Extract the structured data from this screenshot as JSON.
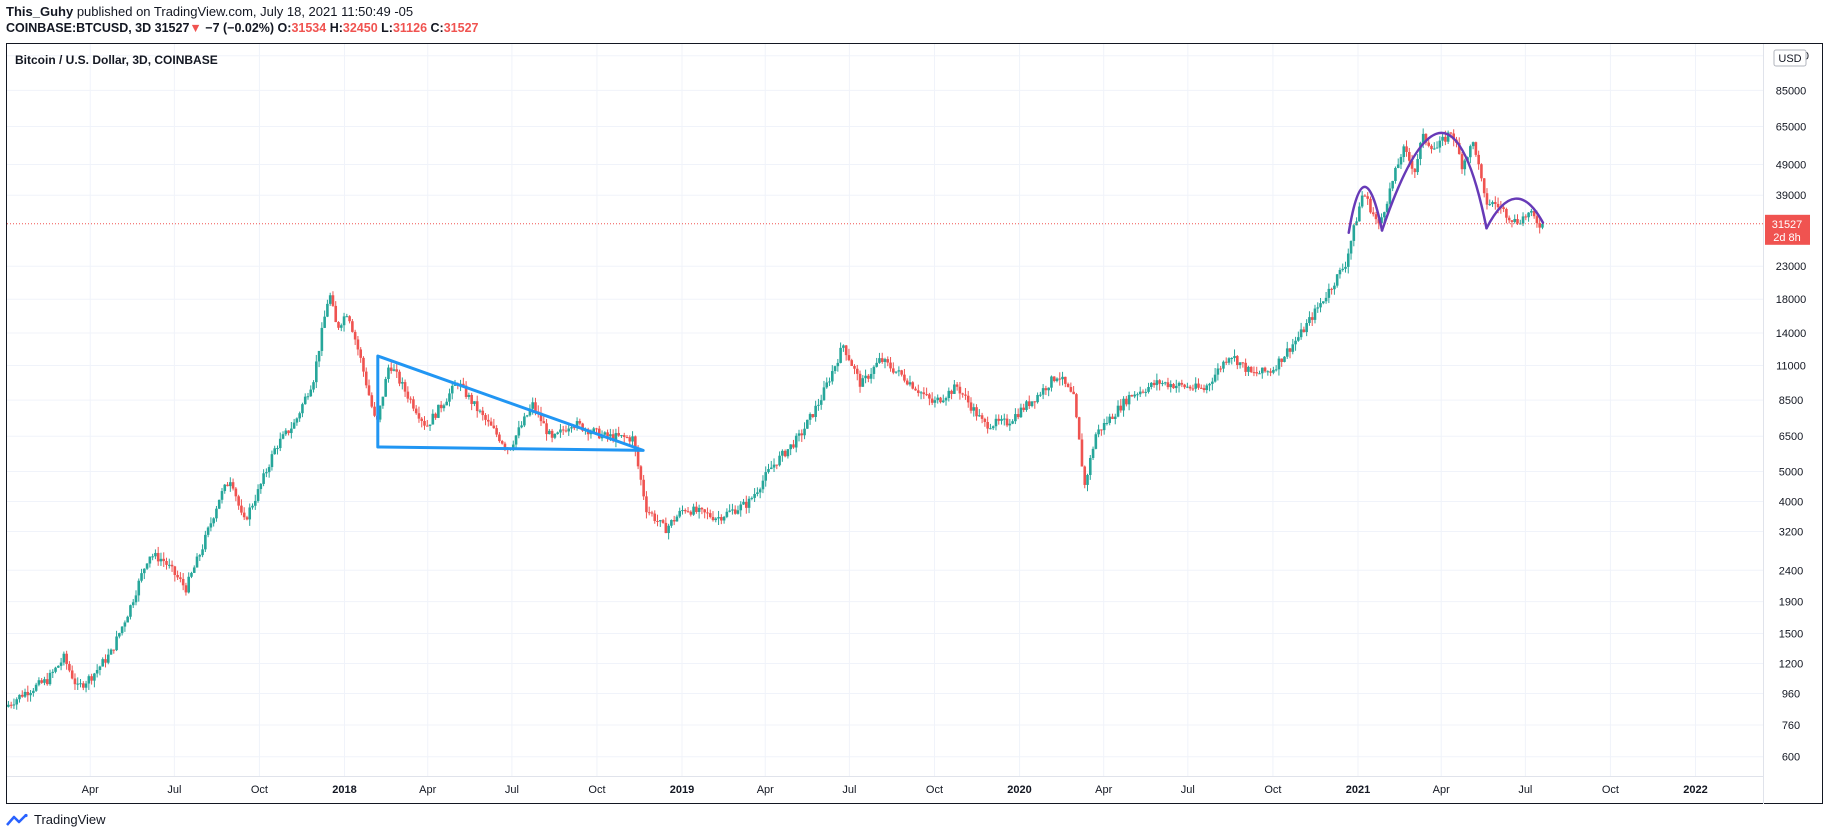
{
  "header": {
    "author": "This_Guhy",
    "published_text": "published on TradingView.com, July 18, 2021 11:50:49 -05",
    "symbol": "COINBASE:BTCUSD, 3D",
    "last": "31527",
    "change_arrow": "▼",
    "change": "−7 (−0.02%)",
    "o_label": "O:",
    "o_value": "31534",
    "h_label": "H:",
    "h_value": "32450",
    "l_label": "L:",
    "l_value": "31126",
    "c_label": "C:",
    "c_value": "31527"
  },
  "footer": {
    "brand": "TradingView"
  },
  "chart_data": {
    "type": "candlestick",
    "title": "Bitcoin / U.S. Dollar, 3D, COINBASE",
    "currency_label": "USD",
    "y_scale": "log",
    "y_ticks": [
      600,
      760,
      960,
      1200,
      1500,
      1900,
      2400,
      3200,
      4000,
      5000,
      6500,
      8500,
      11000,
      14000,
      18000,
      23000,
      31527,
      39000,
      49000,
      65000,
      85000,
      110000
    ],
    "y_tick_labels": [
      "600",
      "760",
      "960",
      "1200",
      "1500",
      "1900",
      "2400",
      "3200",
      "4000",
      "5000",
      "6500",
      "8500",
      "11000",
      "14000",
      "18000",
      "23000",
      "",
      "39000",
      "49000",
      "65000",
      "85000",
      "110000"
    ],
    "x_ticks": [
      "2017-04-01",
      "2017-07-01",
      "2017-10-01",
      "2018-01-01",
      "2018-04-01",
      "2018-07-01",
      "2018-10-01",
      "2019-01-01",
      "2019-04-01",
      "2019-07-01",
      "2019-10-01",
      "2020-01-01",
      "2020-04-01",
      "2020-07-01",
      "2020-10-01",
      "2021-01-01",
      "2021-04-01",
      "2021-07-01",
      "2021-10-01",
      "2022-01-01"
    ],
    "x_tick_labels": [
      "Apr",
      "Jul",
      "Oct",
      "2018",
      "Apr",
      "Jul",
      "Oct",
      "2019",
      "Apr",
      "Jul",
      "Oct",
      "2020",
      "Apr",
      "Jul",
      "Oct",
      "2021",
      "Apr",
      "Jul",
      "Oct",
      "2022"
    ],
    "x_range": [
      "2017-01-01",
      "2022-03-15"
    ],
    "y_range": [
      520,
      120000
    ],
    "last_price": 31527,
    "last_price_label": "31527",
    "countdown_label": "2d 8h",
    "grid": true,
    "colors": {
      "up": "#26a69a",
      "down": "#ef5350",
      "triangle": "#2196f3",
      "arcs": "#673ab7",
      "price_line": "#f05350"
    },
    "price_path": [
      [
        "2017-01-01",
        870
      ],
      [
        "2017-01-20",
        960
      ],
      [
        "2017-02-15",
        1060
      ],
      [
        "2017-03-05",
        1250
      ],
      [
        "2017-03-20",
        1000
      ],
      [
        "2017-04-05",
        1100
      ],
      [
        "2017-04-25",
        1300
      ],
      [
        "2017-05-15",
        1800
      ],
      [
        "2017-06-05",
        2700
      ],
      [
        "2017-06-20",
        2600
      ],
      [
        "2017-07-15",
        2100
      ],
      [
        "2017-08-01",
        2800
      ],
      [
        "2017-08-20",
        4100
      ],
      [
        "2017-09-02",
        4800
      ],
      [
        "2017-09-15",
        3400
      ],
      [
        "2017-10-01",
        4300
      ],
      [
        "2017-10-20",
        6000
      ],
      [
        "2017-11-10",
        7200
      ],
      [
        "2017-11-30",
        10000
      ],
      [
        "2017-12-17",
        19000
      ],
      [
        "2017-12-25",
        14500
      ],
      [
        "2018-01-06",
        16500
      ],
      [
        "2018-01-20",
        11500
      ],
      [
        "2018-02-06",
        7000
      ],
      [
        "2018-02-20",
        11200
      ],
      [
        "2018-03-10",
        9000
      ],
      [
        "2018-04-01",
        7000
      ],
      [
        "2018-05-05",
        9700
      ],
      [
        "2018-06-01",
        7500
      ],
      [
        "2018-06-29",
        5900
      ],
      [
        "2018-07-25",
        8200
      ],
      [
        "2018-08-15",
        6300
      ],
      [
        "2018-09-05",
        7200
      ],
      [
        "2018-10-10",
        6500
      ],
      [
        "2018-11-10",
        6400
      ],
      [
        "2018-11-25",
        3800
      ],
      [
        "2018-12-15",
        3250
      ],
      [
        "2019-01-05",
        3800
      ],
      [
        "2019-02-10",
        3550
      ],
      [
        "2019-03-15",
        3950
      ],
      [
        "2019-04-10",
        5200
      ],
      [
        "2019-05-10",
        6500
      ],
      [
        "2019-06-01",
        8500
      ],
      [
        "2019-06-26",
        12800
      ],
      [
        "2019-07-15",
        9500
      ],
      [
        "2019-08-05",
        11500
      ],
      [
        "2019-09-01",
        10000
      ],
      [
        "2019-10-01",
        8300
      ],
      [
        "2019-10-27",
        9400
      ],
      [
        "2019-11-25",
        7100
      ],
      [
        "2019-12-20",
        7200
      ],
      [
        "2020-01-20",
        8700
      ],
      [
        "2020-02-13",
        10300
      ],
      [
        "2020-03-01",
        8600
      ],
      [
        "2020-03-13",
        4500
      ],
      [
        "2020-03-25",
        6600
      ],
      [
        "2020-05-01",
        8800
      ],
      [
        "2020-06-01",
        9700
      ],
      [
        "2020-07-20",
        9200
      ],
      [
        "2020-08-17",
        12000
      ],
      [
        "2020-09-10",
        10300
      ],
      [
        "2020-10-01",
        10600
      ],
      [
        "2020-11-01",
        13800
      ],
      [
        "2020-12-01",
        19000
      ],
      [
        "2020-12-20",
        23500
      ],
      [
        "2021-01-08",
        40000
      ],
      [
        "2021-01-25",
        31000
      ],
      [
        "2021-02-20",
        55000
      ],
      [
        "2021-03-05",
        47000
      ],
      [
        "2021-03-13",
        60000
      ],
      [
        "2021-03-28",
        55000
      ],
      [
        "2021-04-14",
        63000
      ],
      [
        "2021-04-25",
        49000
      ],
      [
        "2021-05-08",
        58000
      ],
      [
        "2021-05-20",
        37000
      ],
      [
        "2021-06-01",
        36500
      ],
      [
        "2021-06-22",
        32000
      ],
      [
        "2021-07-07",
        34000
      ],
      [
        "2021-07-18",
        31527
      ]
    ],
    "triangle": [
      [
        "2018-02-06",
        11800
      ],
      [
        "2018-02-06",
        6000
      ],
      [
        "2018-11-20",
        5850
      ]
    ],
    "arcs": [
      [
        [
          "2020-12-22",
          29500
        ],
        [
          "2021-01-08",
          41500
        ],
        [
          "2021-01-27",
          30000
        ]
      ],
      [
        [
          "2021-01-27",
          30000
        ],
        [
          "2021-04-01",
          62000
        ],
        [
          "2021-05-20",
          30500
        ]
      ],
      [
        [
          "2021-05-20",
          30500
        ],
        [
          "2021-06-20",
          38000
        ],
        [
          "2021-07-20",
          31800
        ]
      ]
    ]
  }
}
